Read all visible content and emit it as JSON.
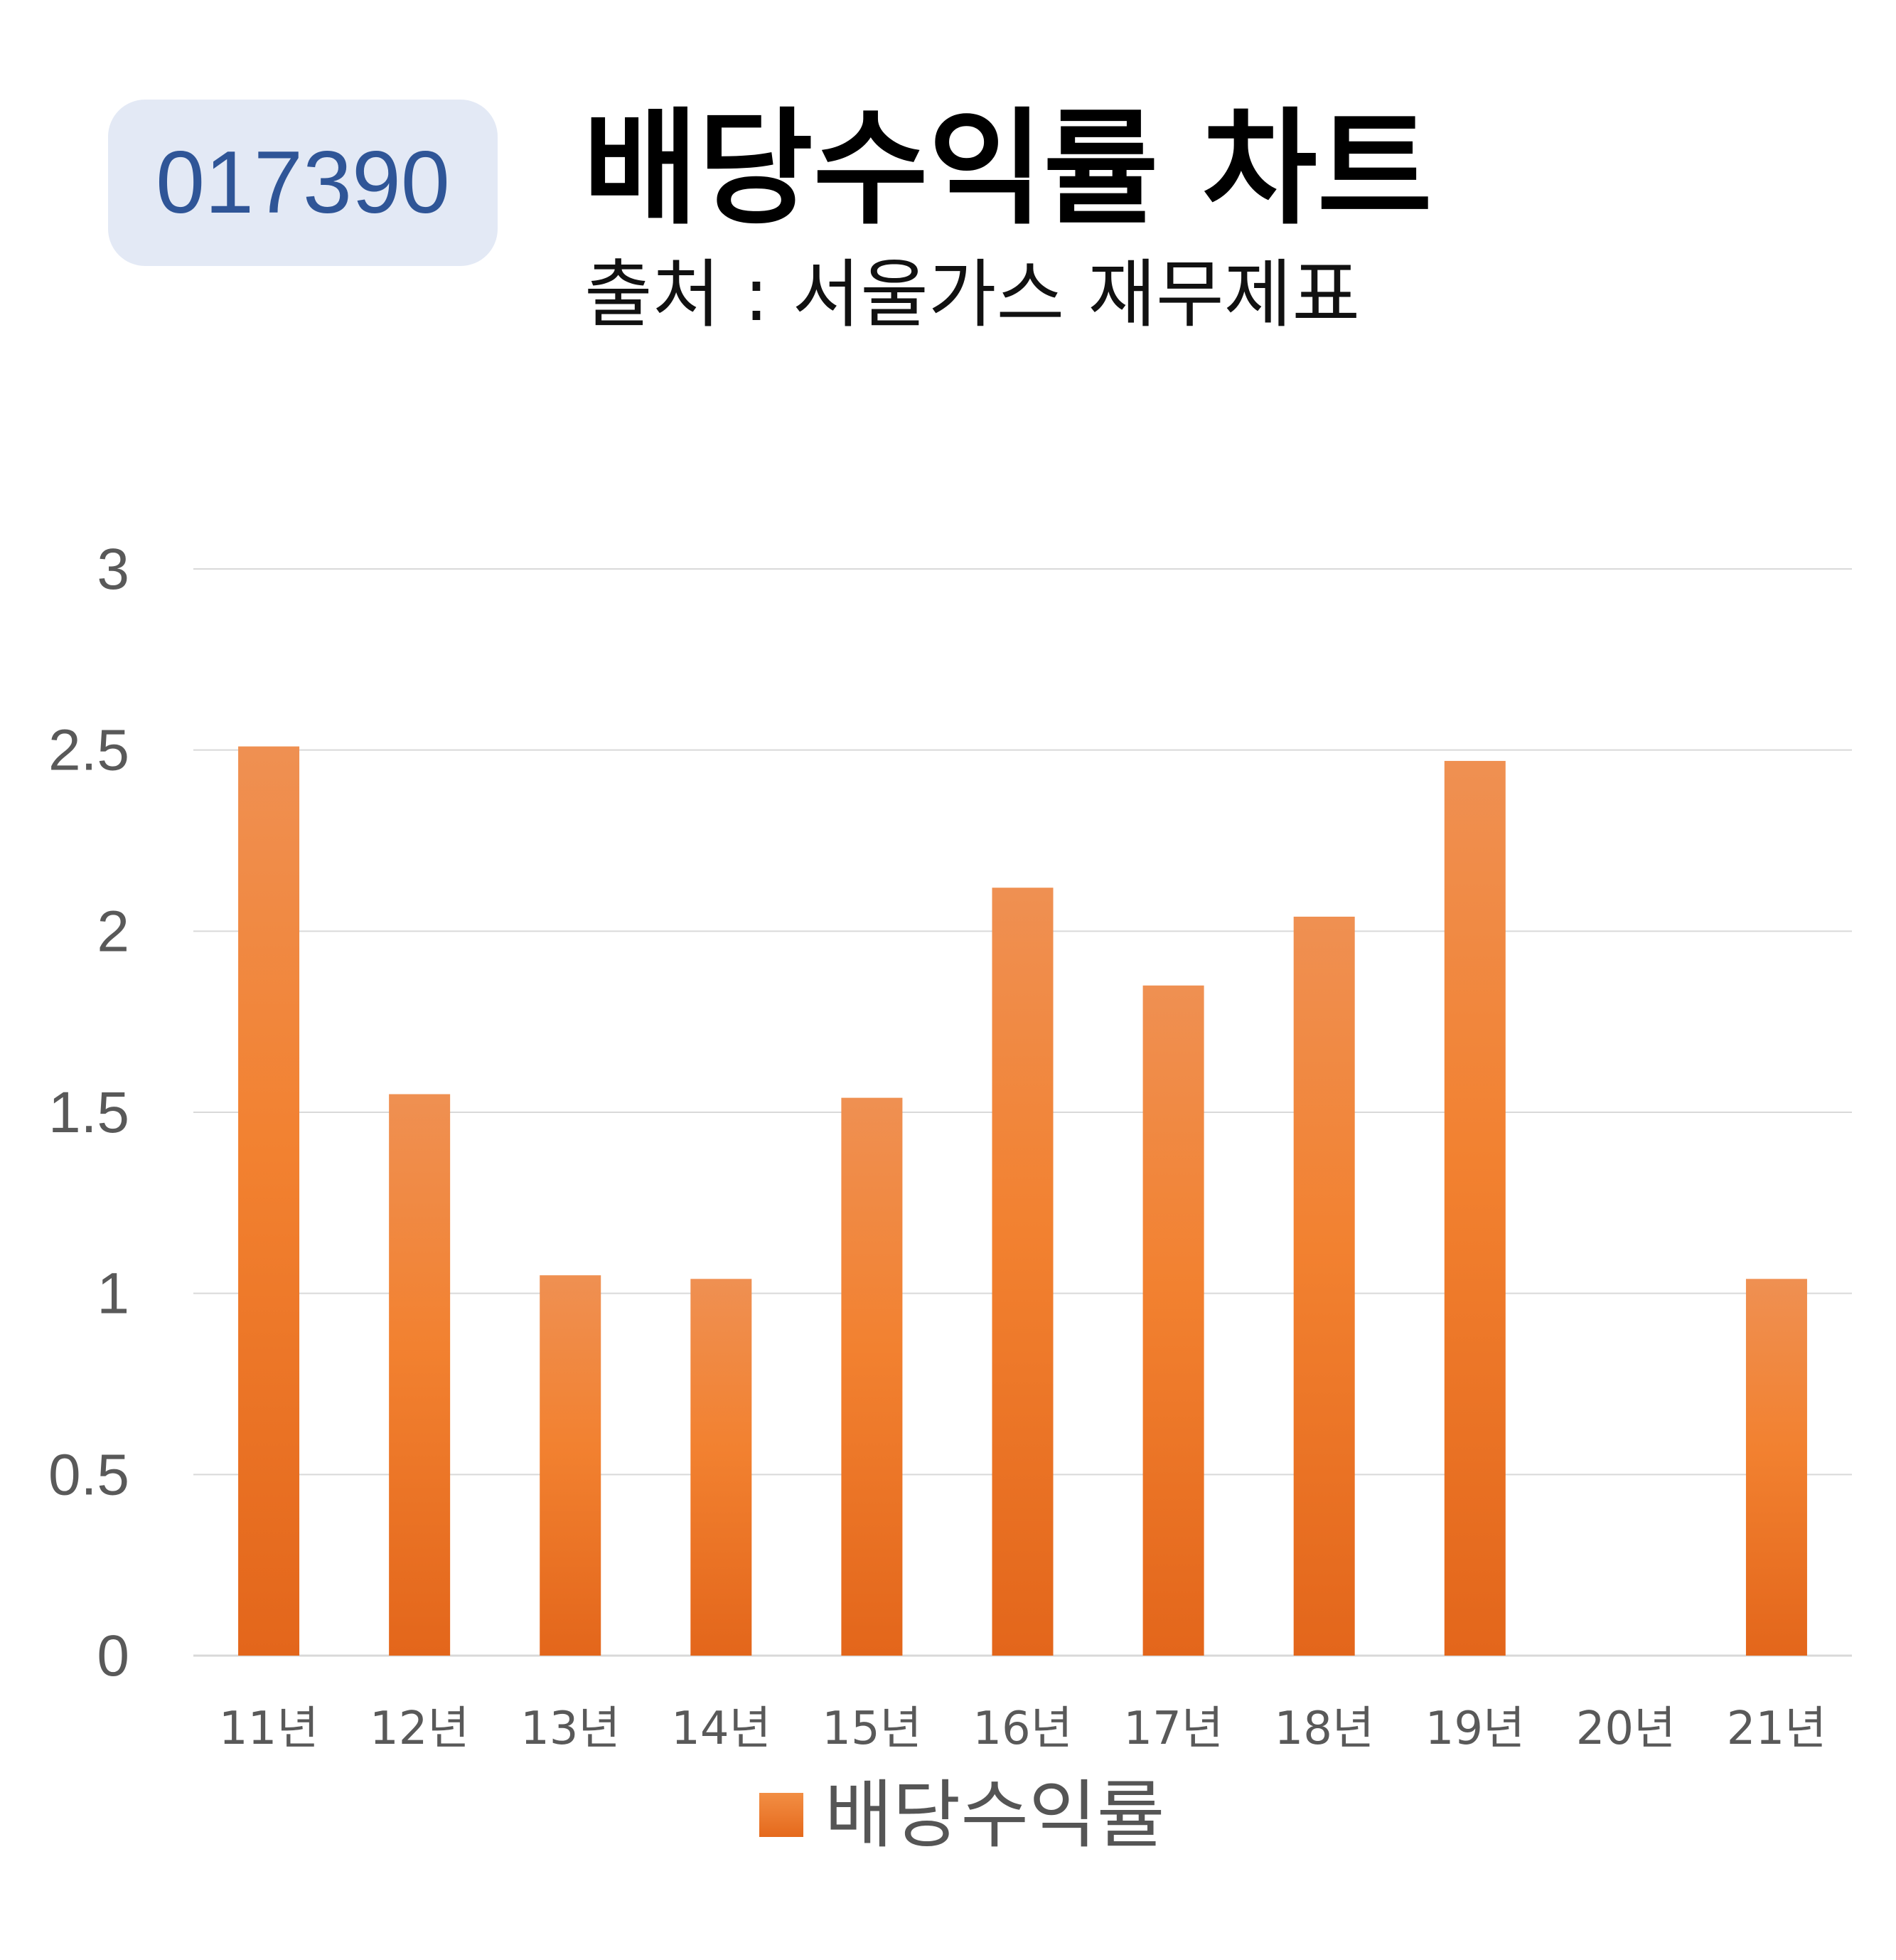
{
  "badge": {
    "ticker": "017390"
  },
  "header": {
    "title": "배당수익률 차트",
    "subtitle": "출처 : 서울가스 재무제표"
  },
  "colors": {
    "bar_top": "#ef9052",
    "bar_mid": "#f28130",
    "bar_bottom": "#e3661b",
    "gridline": "#d9d9d9",
    "axis_text": "#595959",
    "badge_bg": "#e3e9f5",
    "badge_text": "#2f5597"
  },
  "chart_data": {
    "type": "bar",
    "categories": [
      "11년",
      "12년",
      "13년",
      "14년",
      "15년",
      "16년",
      "17년",
      "18년",
      "19년",
      "20년",
      "21년"
    ],
    "series": [
      {
        "name": "배당수익률",
        "values": [
          2.51,
          1.55,
          1.05,
          1.04,
          1.54,
          2.12,
          1.85,
          2.04,
          2.47,
          0,
          1.04
        ]
      }
    ],
    "yticks": [
      "0",
      "0.5",
      "1",
      "1.5",
      "2",
      "2.5",
      "3"
    ],
    "ylim": [
      0,
      3
    ],
    "grid": true,
    "legend_position": "bottom"
  }
}
